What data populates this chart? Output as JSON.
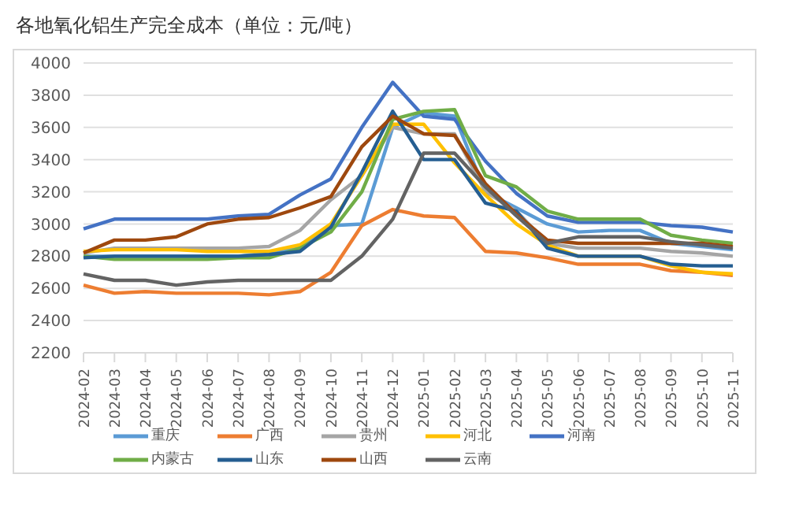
{
  "chart_data": {
    "type": "line",
    "title": "各地氧化铝生产完全成本（单位：元/吨）",
    "categories": [
      "2024-02",
      "2024-03",
      "2024-04",
      "2024-05",
      "2024-06",
      "2024-07",
      "2024-08",
      "2024-09",
      "2024-10",
      "2024-11",
      "2024-12",
      "2025-01",
      "2025-02",
      "2025-03",
      "2025-04",
      "2025-05",
      "2025-06",
      "2025-07",
      "2025-08",
      "2025-09",
      "2025-10",
      "2025-11"
    ],
    "series": [
      {
        "name": "重庆",
        "color": "#5b9bd5",
        "values": [
          2800,
          2800,
          2800,
          2800,
          2800,
          2800,
          2820,
          2850,
          2990,
          3000,
          3600,
          3690,
          3670,
          3200,
          3100,
          3000,
          2950,
          2960,
          2960,
          2880,
          2860,
          2840
        ]
      },
      {
        "name": "广西",
        "color": "#ed7d31",
        "values": [
          2620,
          2570,
          2580,
          2570,
          2570,
          2570,
          2560,
          2580,
          2700,
          2990,
          3090,
          3050,
          3040,
          2830,
          2820,
          2790,
          2750,
          2750,
          2750,
          2710,
          2700,
          2680
        ]
      },
      {
        "name": "贵州",
        "color": "#a5a5a5",
        "values": [
          2820,
          2850,
          2850,
          2850,
          2850,
          2850,
          2860,
          2960,
          3150,
          3300,
          3600,
          3560,
          3560,
          3200,
          3080,
          2880,
          2850,
          2850,
          2850,
          2830,
          2820,
          2800
        ]
      },
      {
        "name": "河北",
        "color": "#ffc000",
        "values": [
          2830,
          2840,
          2840,
          2840,
          2830,
          2830,
          2830,
          2870,
          3000,
          3300,
          3620,
          3620,
          3380,
          3180,
          3000,
          2870,
          2800,
          2800,
          2800,
          2740,
          2700,
          2690
        ]
      },
      {
        "name": "河南",
        "color": "#4472c4",
        "values": [
          2970,
          3030,
          3030,
          3030,
          3030,
          3050,
          3060,
          3180,
          3280,
          3600,
          3880,
          3670,
          3650,
          3390,
          3190,
          3050,
          3010,
          3010,
          3010,
          2990,
          2980,
          2950
        ]
      },
      {
        "name": "内蒙古",
        "color": "#70ad47",
        "values": [
          2800,
          2780,
          2780,
          2780,
          2780,
          2790,
          2790,
          2850,
          2950,
          3200,
          3650,
          3700,
          3710,
          3300,
          3230,
          3080,
          3030,
          3030,
          3030,
          2930,
          2900,
          2880
        ]
      },
      {
        "name": "山东",
        "color": "#255e91",
        "values": [
          2790,
          2800,
          2800,
          2800,
          2800,
          2800,
          2810,
          2830,
          2980,
          3320,
          3700,
          3400,
          3400,
          3130,
          3080,
          2850,
          2800,
          2800,
          2800,
          2750,
          2740,
          2740
        ]
      },
      {
        "name": "山西",
        "color": "#9e480e",
        "values": [
          2820,
          2900,
          2900,
          2920,
          3000,
          3030,
          3040,
          3100,
          3170,
          3480,
          3670,
          3560,
          3550,
          3250,
          3060,
          2900,
          2880,
          2880,
          2880,
          2880,
          2880,
          2860
        ]
      },
      {
        "name": "云南",
        "color": "#636363",
        "values": [
          2690,
          2650,
          2650,
          2620,
          2640,
          2650,
          2650,
          2650,
          2650,
          2800,
          3030,
          3440,
          3440,
          3230,
          3050,
          2880,
          2920,
          2920,
          2920,
          2890,
          2870,
          2850
        ]
      }
    ],
    "ylim": [
      2200,
      4000
    ],
    "yticks": [
      2200,
      2400,
      2600,
      2800,
      3000,
      3200,
      3400,
      3600,
      3800,
      4000
    ],
    "grid": "y",
    "legend": "bottom",
    "marker": "none",
    "line_style": "solid"
  }
}
